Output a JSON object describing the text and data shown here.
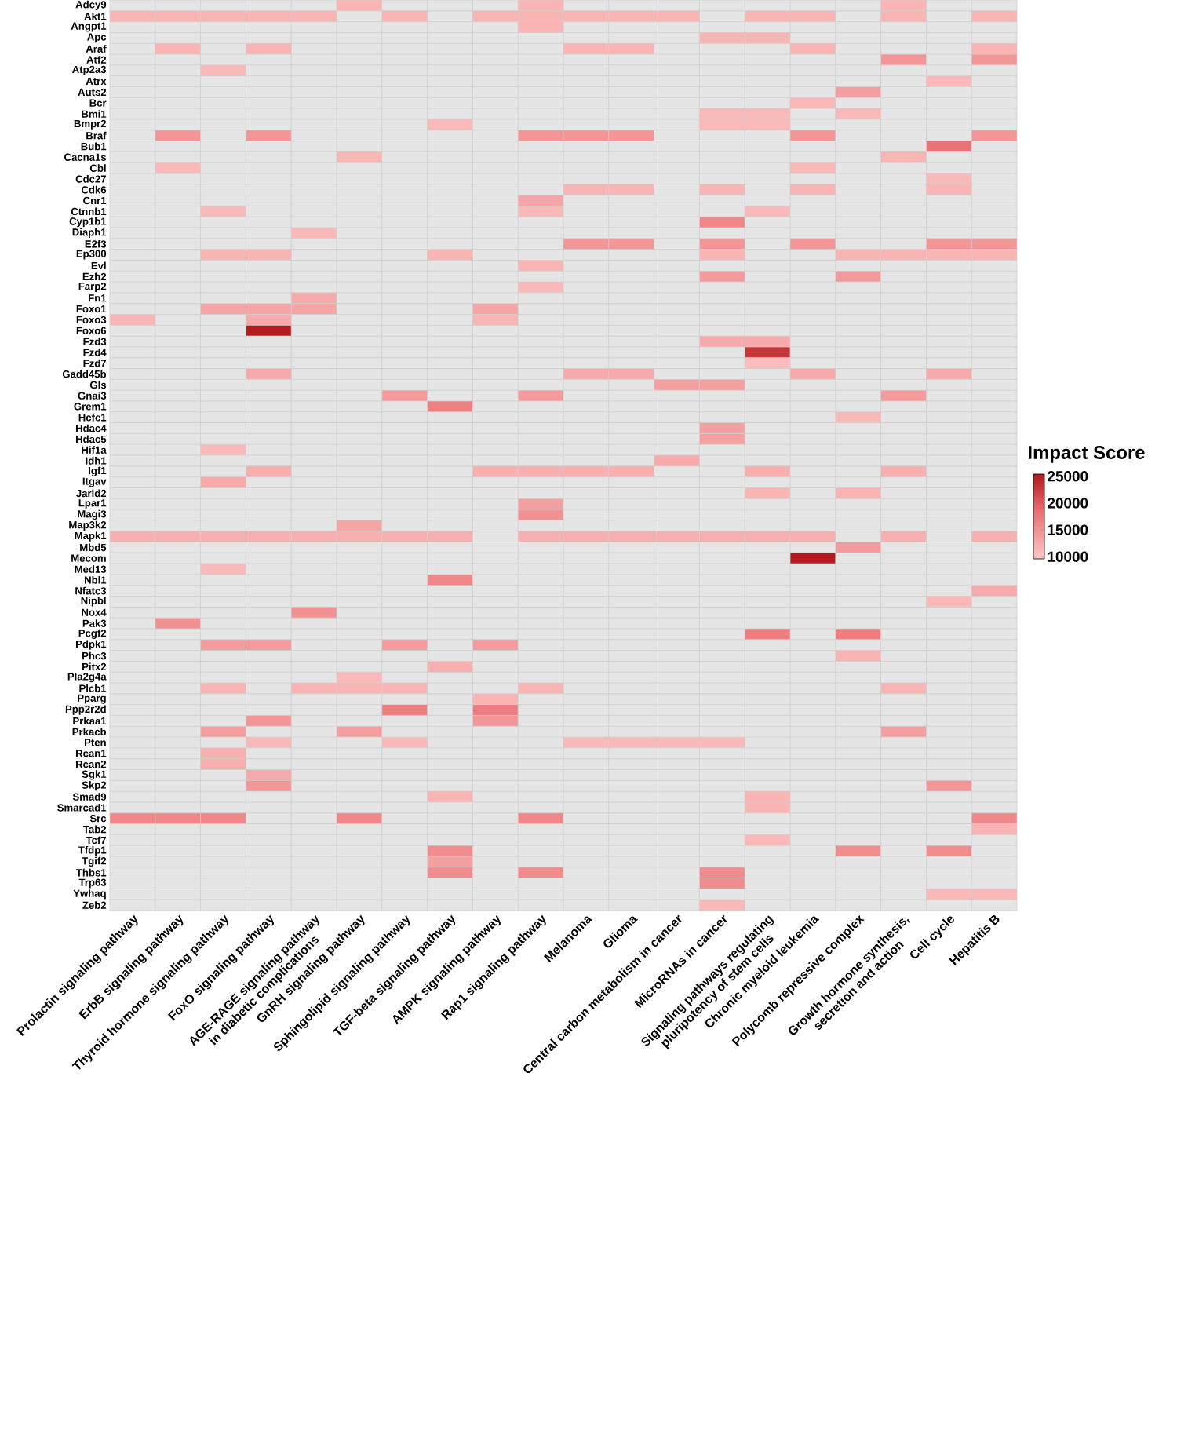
{
  "chart_data": {
    "type": "heatmap",
    "clabel": "Impact Score",
    "clim": [
      9600,
      25400
    ],
    "cticks": [
      10000,
      15000,
      20000,
      25000
    ],
    "categories": [
      "Prolactin signaling pathway",
      "ErbB signaling pathway",
      "Thyroid hormone signaling pathway",
      "FoxO signaling pathway",
      "AGE-RAGE signaling pathway in diabetic complications",
      "GnRH signaling pathway",
      "Sphingolipid signaling pathway",
      "TGF-beta signaling pathway",
      "AMPK signaling pathway",
      "Rap1 signaling pathway",
      "Melanoma",
      "Glioma",
      "Central carbon metabolism in cancer",
      "MicroRNAs in cancer",
      "Signaling pathways regulating pluripotency of stem cells",
      "Chronic myeloid leukemia",
      "Polycomb repressive complex",
      "Growth hormone synthesis, secretion and action",
      "Cell cycle",
      "Hepatitis B"
    ],
    "y_categories": [
      "Adcy9",
      "Akt1",
      "Angpt1",
      "Apc",
      "Araf",
      "Atf2",
      "Atp2a3",
      "Atrx",
      "Auts2",
      "Bcr",
      "Bmi1",
      "Bmpr2",
      "Braf",
      "Bub1",
      "Cacna1s",
      "Cbl",
      "Cdc27",
      "Cdk6",
      "Cnr1",
      "Ctnnb1",
      "Cyp1b1",
      "Diaph1",
      "E2f3",
      "Ep300",
      "Evl",
      "Ezh2",
      "Farp2",
      "Fn1",
      "Foxo1",
      "Foxo3",
      "Foxo6",
      "Fzd3",
      "Fzd4",
      "Fzd7",
      "Gadd45b",
      "Gls",
      "Gnai3",
      "Grem1",
      "Hcfc1",
      "Hdac4",
      "Hdac5",
      "Hif1a",
      "Idh1",
      "Igf1",
      "Itgav",
      "Jarid2",
      "Lpar1",
      "Magi3",
      "Map3k2",
      "Mapk1",
      "Mbd5",
      "Mecom",
      "Med13",
      "Nbl1",
      "Nfatc3",
      "Nipbl",
      "Nox4",
      "Pak3",
      "Pcgf2",
      "Pdpk1",
      "Phc3",
      "Pitx2",
      "Pla2g4a",
      "Plcb1",
      "Pparg",
      "Ppp2r2d",
      "Prkaa1",
      "Prkacb",
      "Pten",
      "Rcan1",
      "Rcan2",
      "Sgk1",
      "Skp2",
      "Smad9",
      "Smarcad1",
      "Src",
      "Tab2",
      "Tcf7",
      "Tfdp1",
      "Tgif2",
      "Thbs1",
      "Trp63",
      "Ywhaq",
      "Zeb2"
    ],
    "cells": [
      [
        null,
        null,
        null,
        null,
        null,
        11500,
        null,
        null,
        null,
        11500,
        null,
        null,
        null,
        null,
        null,
        null,
        null,
        11500,
        null,
        null
      ],
      [
        11500,
        11500,
        11500,
        11500,
        11500,
        null,
        11500,
        null,
        11500,
        11500,
        11500,
        11500,
        11500,
        null,
        11500,
        11500,
        null,
        11500,
        null,
        11500
      ],
      [
        null,
        null,
        null,
        null,
        null,
        null,
        null,
        null,
        null,
        11500,
        null,
        null,
        null,
        null,
        null,
        null,
        null,
        null,
        null,
        null
      ],
      [
        null,
        null,
        null,
        null,
        null,
        null,
        null,
        null,
        null,
        null,
        null,
        null,
        null,
        11500,
        11500,
        null,
        null,
        null,
        null,
        null
      ],
      [
        null,
        11500,
        null,
        11500,
        null,
        null,
        null,
        null,
        null,
        null,
        11500,
        11500,
        null,
        null,
        null,
        11500,
        null,
        null,
        null,
        11500
      ],
      [
        null,
        null,
        null,
        null,
        null,
        null,
        null,
        null,
        null,
        null,
        null,
        null,
        null,
        null,
        null,
        null,
        null,
        14500,
        null,
        14500
      ],
      [
        null,
        null,
        11000,
        null,
        null,
        null,
        null,
        null,
        null,
        null,
        null,
        null,
        null,
        null,
        null,
        null,
        null,
        null,
        null,
        null
      ],
      [
        null,
        null,
        null,
        null,
        null,
        null,
        null,
        null,
        null,
        null,
        null,
        null,
        null,
        null,
        null,
        null,
        null,
        null,
        11000,
        null
      ],
      [
        null,
        null,
        null,
        null,
        null,
        null,
        null,
        null,
        null,
        null,
        null,
        null,
        null,
        null,
        null,
        null,
        13500,
        null,
        null,
        null
      ],
      [
        null,
        null,
        null,
        null,
        null,
        null,
        null,
        null,
        null,
        null,
        null,
        null,
        null,
        null,
        null,
        11000,
        null,
        null,
        null,
        null
      ],
      [
        null,
        null,
        null,
        null,
        null,
        null,
        null,
        null,
        null,
        null,
        null,
        null,
        null,
        11000,
        11000,
        null,
        11000,
        null,
        null,
        null
      ],
      [
        null,
        null,
        null,
        null,
        null,
        null,
        null,
        11000,
        null,
        null,
        null,
        null,
        null,
        11000,
        11000,
        null,
        null,
        null,
        null,
        null
      ],
      [
        null,
        14500,
        null,
        14500,
        null,
        null,
        null,
        null,
        null,
        14500,
        14500,
        14500,
        null,
        null,
        null,
        14500,
        null,
        null,
        null,
        14500
      ],
      [
        null,
        null,
        null,
        null,
        null,
        null,
        null,
        null,
        null,
        null,
        null,
        null,
        null,
        null,
        null,
        null,
        null,
        null,
        18000,
        null
      ],
      [
        null,
        null,
        null,
        null,
        null,
        11500,
        null,
        null,
        null,
        null,
        null,
        null,
        null,
        null,
        null,
        null,
        null,
        11500,
        null,
        null
      ],
      [
        null,
        11000,
        null,
        null,
        null,
        null,
        null,
        null,
        null,
        null,
        null,
        null,
        null,
        null,
        null,
        11000,
        null,
        null,
        null,
        null
      ],
      [
        null,
        null,
        null,
        null,
        null,
        null,
        null,
        null,
        null,
        null,
        null,
        null,
        null,
        null,
        null,
        null,
        null,
        null,
        11000,
        null
      ],
      [
        null,
        null,
        null,
        null,
        null,
        null,
        null,
        null,
        null,
        null,
        11500,
        11500,
        null,
        11500,
        null,
        11500,
        null,
        null,
        11500,
        null
      ],
      [
        null,
        null,
        null,
        null,
        null,
        null,
        null,
        null,
        null,
        13000,
        null,
        null,
        null,
        null,
        null,
        null,
        null,
        null,
        null,
        null
      ],
      [
        null,
        null,
        11000,
        null,
        null,
        null,
        null,
        null,
        null,
        11000,
        null,
        null,
        null,
        null,
        11000,
        null,
        null,
        null,
        null,
        null
      ],
      [
        null,
        null,
        null,
        null,
        null,
        null,
        null,
        null,
        null,
        null,
        null,
        null,
        null,
        16000,
        null,
        null,
        null,
        null,
        null,
        null
      ],
      [
        null,
        null,
        null,
        null,
        11000,
        null,
        null,
        null,
        null,
        null,
        null,
        null,
        null,
        null,
        null,
        null,
        null,
        null,
        null,
        null
      ],
      [
        null,
        null,
        null,
        null,
        null,
        null,
        null,
        null,
        null,
        null,
        14500,
        14500,
        null,
        14500,
        null,
        14500,
        null,
        null,
        14500,
        14500
      ],
      [
        null,
        null,
        11500,
        11500,
        null,
        null,
        null,
        11500,
        null,
        null,
        null,
        null,
        null,
        11500,
        null,
        null,
        11500,
        11500,
        11500,
        11500
      ],
      [
        null,
        null,
        null,
        null,
        null,
        null,
        null,
        null,
        null,
        11500,
        null,
        null,
        null,
        null,
        null,
        null,
        null,
        null,
        null,
        null
      ],
      [
        null,
        null,
        null,
        null,
        null,
        null,
        null,
        null,
        null,
        null,
        null,
        null,
        null,
        14000,
        null,
        null,
        14000,
        null,
        null,
        null
      ],
      [
        null,
        null,
        null,
        null,
        null,
        null,
        null,
        null,
        null,
        11000,
        null,
        null,
        null,
        null,
        null,
        null,
        null,
        null,
        null,
        null
      ],
      [
        null,
        null,
        null,
        null,
        12500,
        null,
        null,
        null,
        null,
        null,
        null,
        null,
        null,
        null,
        null,
        null,
        null,
        null,
        null,
        null
      ],
      [
        null,
        null,
        13000,
        13000,
        13000,
        null,
        null,
        null,
        13000,
        null,
        null,
        null,
        null,
        null,
        null,
        null,
        null,
        null,
        null,
        null
      ],
      [
        11500,
        null,
        null,
        12500,
        null,
        null,
        null,
        null,
        11500,
        null,
        null,
        null,
        null,
        null,
        null,
        null,
        null,
        null,
        null,
        null
      ],
      [
        null,
        null,
        null,
        25000,
        null,
        null,
        null,
        null,
        null,
        null,
        null,
        null,
        null,
        null,
        null,
        null,
        null,
        null,
        null,
        null
      ],
      [
        null,
        null,
        null,
        null,
        null,
        null,
        null,
        null,
        null,
        null,
        null,
        null,
        null,
        12500,
        12500,
        null,
        null,
        null,
        null,
        null
      ],
      [
        null,
        null,
        null,
        null,
        null,
        null,
        null,
        null,
        null,
        null,
        null,
        null,
        null,
        null,
        23000,
        null,
        null,
        null,
        null,
        null
      ],
      [
        null,
        null,
        null,
        null,
        null,
        null,
        null,
        null,
        null,
        null,
        null,
        null,
        null,
        null,
        10500,
        null,
        null,
        null,
        null,
        null
      ],
      [
        null,
        null,
        null,
        12500,
        null,
        null,
        null,
        null,
        null,
        null,
        12500,
        12500,
        null,
        null,
        null,
        12500,
        null,
        null,
        12500,
        null
      ],
      [
        null,
        null,
        null,
        null,
        null,
        null,
        null,
        null,
        null,
        null,
        null,
        null,
        13500,
        13500,
        null,
        null,
        null,
        null,
        null,
        null
      ],
      [
        null,
        null,
        null,
        null,
        null,
        null,
        14000,
        null,
        null,
        14000,
        null,
        null,
        null,
        null,
        null,
        null,
        null,
        14000,
        null,
        null
      ],
      [
        null,
        null,
        null,
        null,
        null,
        null,
        null,
        16500,
        null,
        null,
        null,
        null,
        null,
        null,
        null,
        null,
        null,
        null,
        null,
        null
      ],
      [
        null,
        null,
        null,
        null,
        null,
        null,
        null,
        null,
        null,
        null,
        null,
        null,
        null,
        null,
        null,
        null,
        11000,
        null,
        null,
        null
      ],
      [
        null,
        null,
        null,
        null,
        null,
        null,
        null,
        null,
        null,
        null,
        null,
        null,
        null,
        13500,
        null,
        null,
        null,
        null,
        null,
        null
      ],
      [
        null,
        null,
        null,
        null,
        null,
        null,
        null,
        null,
        null,
        null,
        null,
        null,
        null,
        13500,
        null,
        null,
        null,
        null,
        null,
        null
      ],
      [
        null,
        null,
        11000,
        null,
        null,
        null,
        null,
        null,
        null,
        null,
        null,
        null,
        null,
        null,
        null,
        null,
        null,
        null,
        null,
        null
      ],
      [
        null,
        null,
        null,
        null,
        null,
        null,
        null,
        null,
        null,
        null,
        null,
        null,
        12500,
        null,
        null,
        null,
        null,
        null,
        null,
        null
      ],
      [
        null,
        null,
        null,
        12000,
        null,
        null,
        null,
        null,
        12000,
        12000,
        12000,
        12000,
        null,
        null,
        12000,
        null,
        null,
        12000,
        null,
        null
      ],
      [
        null,
        null,
        12500,
        null,
        null,
        null,
        null,
        null,
        null,
        null,
        null,
        null,
        null,
        null,
        null,
        null,
        null,
        null,
        null,
        null
      ],
      [
        null,
        null,
        null,
        null,
        null,
        null,
        null,
        null,
        null,
        null,
        null,
        null,
        null,
        null,
        11500,
        null,
        11500,
        null,
        null,
        null
      ],
      [
        null,
        null,
        null,
        null,
        null,
        null,
        null,
        null,
        null,
        13500,
        null,
        null,
        null,
        null,
        null,
        null,
        null,
        null,
        null,
        null
      ],
      [
        null,
        null,
        null,
        null,
        null,
        null,
        null,
        null,
        null,
        15000,
        null,
        null,
        null,
        null,
        null,
        null,
        null,
        null,
        null,
        null
      ],
      [
        null,
        null,
        null,
        null,
        null,
        13000,
        null,
        null,
        null,
        null,
        null,
        null,
        null,
        null,
        null,
        null,
        null,
        null,
        null,
        null
      ],
      [
        12000,
        12000,
        12000,
        12000,
        12000,
        12000,
        12000,
        12000,
        null,
        12000,
        12000,
        12000,
        12000,
        12000,
        12000,
        12000,
        null,
        12000,
        null,
        12000
      ],
      [
        null,
        null,
        null,
        null,
        null,
        null,
        null,
        null,
        null,
        null,
        null,
        null,
        null,
        null,
        null,
        null,
        14000,
        null,
        null,
        null
      ],
      [
        null,
        null,
        null,
        null,
        null,
        null,
        null,
        null,
        null,
        null,
        null,
        null,
        null,
        null,
        null,
        25000,
        null,
        null,
        null,
        null
      ],
      [
        null,
        null,
        11000,
        null,
        null,
        null,
        null,
        null,
        null,
        null,
        null,
        null,
        null,
        null,
        null,
        null,
        null,
        null,
        null,
        null
      ],
      [
        null,
        null,
        null,
        null,
        null,
        null,
        null,
        16000,
        null,
        null,
        null,
        null,
        null,
        null,
        null,
        null,
        null,
        null,
        null,
        null
      ],
      [
        null,
        null,
        null,
        null,
        null,
        null,
        null,
        null,
        null,
        null,
        null,
        null,
        null,
        null,
        null,
        null,
        null,
        null,
        null,
        12500
      ],
      [
        null,
        null,
        null,
        null,
        null,
        null,
        null,
        null,
        null,
        null,
        null,
        null,
        null,
        null,
        null,
        null,
        null,
        null,
        11000,
        null
      ],
      [
        null,
        null,
        null,
        null,
        15000,
        null,
        null,
        null,
        null,
        null,
        null,
        null,
        null,
        null,
        null,
        null,
        null,
        null,
        null,
        null
      ],
      [
        null,
        15000,
        null,
        null,
        null,
        null,
        null,
        null,
        null,
        null,
        null,
        null,
        null,
        null,
        null,
        null,
        null,
        null,
        null,
        null
      ],
      [
        null,
        null,
        null,
        null,
        null,
        null,
        null,
        null,
        null,
        null,
        null,
        null,
        null,
        null,
        17000,
        null,
        17000,
        null,
        null,
        null
      ],
      [
        null,
        null,
        14000,
        14000,
        null,
        null,
        14000,
        null,
        14000,
        null,
        null,
        null,
        null,
        null,
        null,
        null,
        null,
        null,
        null,
        null
      ],
      [
        null,
        null,
        null,
        null,
        null,
        null,
        null,
        null,
        null,
        null,
        null,
        null,
        null,
        null,
        null,
        null,
        11500,
        null,
        null,
        null
      ],
      [
        null,
        null,
        null,
        null,
        null,
        null,
        null,
        12000,
        null,
        null,
        null,
        null,
        null,
        null,
        null,
        null,
        null,
        null,
        null,
        null
      ],
      [
        null,
        null,
        null,
        null,
        null,
        11000,
        null,
        null,
        null,
        null,
        null,
        null,
        null,
        null,
        null,
        null,
        null,
        null,
        null,
        null
      ],
      [
        null,
        null,
        11500,
        null,
        11500,
        11500,
        11500,
        null,
        null,
        11500,
        null,
        null,
        null,
        null,
        null,
        null,
        null,
        11500,
        null,
        null
      ],
      [
        null,
        null,
        null,
        null,
        null,
        null,
        null,
        null,
        11500,
        null,
        null,
        null,
        null,
        null,
        null,
        null,
        null,
        null,
        null,
        null
      ],
      [
        null,
        null,
        null,
        null,
        null,
        null,
        17000,
        null,
        17000,
        null,
        null,
        null,
        null,
        null,
        null,
        null,
        null,
        null,
        null,
        null
      ],
      [
        null,
        null,
        null,
        14500,
        null,
        null,
        null,
        null,
        14500,
        null,
        null,
        null,
        null,
        null,
        null,
        null,
        null,
        null,
        null,
        null
      ],
      [
        null,
        null,
        13500,
        null,
        null,
        13500,
        null,
        null,
        null,
        null,
        null,
        null,
        null,
        null,
        null,
        null,
        null,
        13500,
        null,
        null
      ],
      [
        null,
        null,
        null,
        11000,
        null,
        null,
        11000,
        null,
        null,
        null,
        11000,
        11000,
        11000,
        11000,
        null,
        null,
        null,
        null,
        null,
        null
      ],
      [
        null,
        null,
        12000,
        null,
        null,
        null,
        null,
        null,
        null,
        null,
        null,
        null,
        null,
        null,
        null,
        null,
        null,
        null,
        null,
        null
      ],
      [
        null,
        null,
        12000,
        null,
        null,
        null,
        null,
        null,
        null,
        null,
        null,
        null,
        null,
        null,
        null,
        null,
        null,
        null,
        null,
        null
      ],
      [
        null,
        null,
        null,
        12500,
        null,
        null,
        null,
        null,
        null,
        null,
        null,
        null,
        null,
        null,
        null,
        null,
        null,
        null,
        null,
        null
      ],
      [
        null,
        null,
        null,
        14500,
        null,
        null,
        null,
        null,
        null,
        null,
        null,
        null,
        null,
        null,
        null,
        null,
        null,
        null,
        14500,
        null
      ],
      [
        null,
        null,
        null,
        null,
        null,
        null,
        null,
        11500,
        null,
        null,
        null,
        null,
        null,
        null,
        11500,
        null,
        null,
        null,
        null,
        null
      ],
      [
        null,
        null,
        null,
        null,
        null,
        null,
        null,
        null,
        null,
        null,
        null,
        null,
        null,
        null,
        11500,
        null,
        null,
        null,
        null,
        null
      ],
      [
        16000,
        16000,
        16000,
        null,
        null,
        16000,
        null,
        null,
        null,
        16000,
        null,
        null,
        null,
        null,
        null,
        null,
        null,
        null,
        null,
        16000
      ],
      [
        null,
        null,
        null,
        null,
        null,
        null,
        null,
        null,
        null,
        null,
        null,
        null,
        null,
        null,
        null,
        null,
        null,
        null,
        null,
        11500
      ],
      [
        null,
        null,
        null,
        null,
        null,
        null,
        null,
        null,
        null,
        null,
        null,
        null,
        null,
        null,
        11000,
        null,
        null,
        null,
        null,
        null
      ],
      [
        null,
        null,
        null,
        null,
        null,
        null,
        null,
        15500,
        null,
        null,
        null,
        null,
        null,
        null,
        null,
        null,
        15500,
        null,
        15500,
        null
      ],
      [
        null,
        null,
        null,
        null,
        null,
        null,
        null,
        13500,
        null,
        null,
        null,
        null,
        null,
        null,
        null,
        null,
        null,
        null,
        null,
        null
      ],
      [
        null,
        null,
        null,
        null,
        null,
        null,
        null,
        15500,
        null,
        15500,
        null,
        null,
        null,
        15500,
        null,
        null,
        null,
        null,
        null,
        null
      ],
      [
        null,
        null,
        null,
        null,
        null,
        null,
        null,
        null,
        null,
        null,
        null,
        null,
        null,
        15500,
        null,
        null,
        null,
        null,
        null,
        null
      ],
      [
        null,
        null,
        null,
        null,
        null,
        null,
        null,
        null,
        null,
        null,
        null,
        null,
        null,
        null,
        null,
        null,
        null,
        null,
        11000,
        11000
      ],
      [
        null,
        null,
        null,
        null,
        null,
        null,
        null,
        null,
        null,
        null,
        null,
        null,
        null,
        11000,
        null,
        null,
        null,
        null,
        null,
        null
      ]
    ]
  }
}
